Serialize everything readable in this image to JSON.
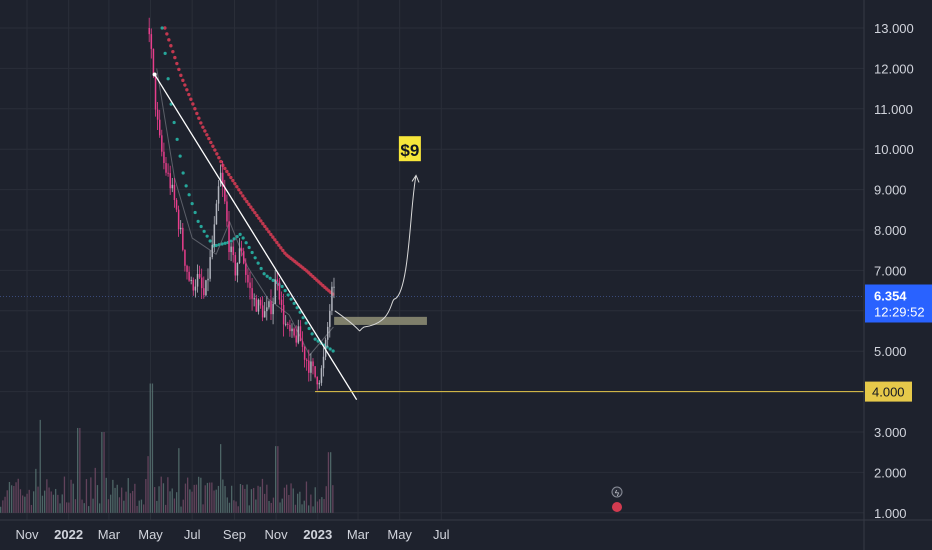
{
  "colors": {
    "background": "#1e222d",
    "grid": "#2a2e39",
    "axis_text": "#d1d4dc",
    "candle_up": "#b2b5be",
    "candle_down": "#e83e8c",
    "ma_red": "#c2384f",
    "ma_teal": "#26a69a",
    "ma_gray": "#6b6f78",
    "trendline": "#ffffff",
    "support_line": "#e6c94a",
    "zone": "#8a8a72",
    "price_tag": "#2962ff",
    "target_label_bg": "#f7e63a"
  },
  "chart_data": {
    "type": "candlestick",
    "title": "",
    "xlabel": "",
    "ylabel": "",
    "ylim": [
      1.0,
      13.0
    ],
    "x_ticks": [
      "Nov",
      "2022",
      "Mar",
      "May",
      "Jul",
      "Sep",
      "Nov",
      "2023",
      "Mar",
      "May",
      "Jul"
    ],
    "x_tick_dates": [
      "2021-11-01",
      "2022-01-01",
      "2022-03-01",
      "2022-05-01",
      "2022-07-01",
      "2022-09-01",
      "2022-11-01",
      "2023-01-01",
      "2023-03-01",
      "2023-05-01",
      "2023-07-01"
    ],
    "x_tick_bold": [
      false,
      true,
      false,
      false,
      false,
      false,
      false,
      true,
      false,
      false,
      false
    ],
    "y_ticks": [
      "13.000",
      "12.000",
      "11.000",
      "10.000",
      "9.000",
      "8.000",
      "7.000",
      "6.000",
      "5.000",
      "4.000",
      "3.000",
      "2.000",
      "1.000"
    ],
    "price_series_approx": [
      {
        "date": "2022-04-28",
        "close": 13.0
      },
      {
        "date": "2022-05-05",
        "close": 11.5
      },
      {
        "date": "2022-05-12",
        "close": 10.3
      },
      {
        "date": "2022-05-20",
        "close": 9.6
      },
      {
        "date": "2022-05-28",
        "close": 9.2
      },
      {
        "date": "2022-06-08",
        "close": 8.4
      },
      {
        "date": "2022-06-20",
        "close": 7.2
      },
      {
        "date": "2022-06-28",
        "close": 6.6
      },
      {
        "date": "2022-07-08",
        "close": 6.8
      },
      {
        "date": "2022-07-18",
        "close": 6.3
      },
      {
        "date": "2022-07-26",
        "close": 7.2
      },
      {
        "date": "2022-08-03",
        "close": 8.2
      },
      {
        "date": "2022-08-10",
        "close": 9.4
      },
      {
        "date": "2022-08-17",
        "close": 8.6
      },
      {
        "date": "2022-08-24",
        "close": 7.5
      },
      {
        "date": "2022-09-01",
        "close": 7.0
      },
      {
        "date": "2022-09-10",
        "close": 7.6
      },
      {
        "date": "2022-09-18",
        "close": 6.8
      },
      {
        "date": "2022-09-26",
        "close": 6.3
      },
      {
        "date": "2022-10-06",
        "close": 6.1
      },
      {
        "date": "2022-10-16",
        "close": 5.9
      },
      {
        "date": "2022-10-26",
        "close": 6.2
      },
      {
        "date": "2022-11-01",
        "close": 7.0
      },
      {
        "date": "2022-11-08",
        "close": 6.0
      },
      {
        "date": "2022-11-16",
        "close": 5.5
      },
      {
        "date": "2022-11-25",
        "close": 5.3
      },
      {
        "date": "2022-12-03",
        "close": 5.4
      },
      {
        "date": "2022-12-12",
        "close": 4.9
      },
      {
        "date": "2022-12-20",
        "close": 4.6
      },
      {
        "date": "2022-12-28",
        "close": 4.35
      },
      {
        "date": "2023-01-04",
        "close": 4.4
      },
      {
        "date": "2023-01-10",
        "close": 4.9
      },
      {
        "date": "2023-01-14",
        "close": 5.5
      },
      {
        "date": "2023-01-18",
        "close": 6.1
      },
      {
        "date": "2023-01-22",
        "close": 6.6
      },
      {
        "date": "2023-01-24",
        "close": 6.354
      }
    ],
    "moving_averages": [
      {
        "color_key": "ma_red",
        "points": [
          {
            "date": "2022-05-22",
            "value": 13.0
          },
          {
            "date": "2022-06-15",
            "value": 11.8
          },
          {
            "date": "2022-07-15",
            "value": 10.6
          },
          {
            "date": "2022-08-15",
            "value": 9.6
          },
          {
            "date": "2022-09-15",
            "value": 8.8
          },
          {
            "date": "2022-10-15",
            "value": 8.1
          },
          {
            "date": "2022-11-15",
            "value": 7.4
          },
          {
            "date": "2022-12-15",
            "value": 7.0
          },
          {
            "date": "2023-01-10",
            "value": 6.6
          },
          {
            "date": "2023-01-24",
            "value": 6.4
          }
        ]
      },
      {
        "color_key": "ma_teal",
        "points": [
          {
            "date": "2022-05-18",
            "value": 13.0
          },
          {
            "date": "2022-06-01",
            "value": 11.0
          },
          {
            "date": "2022-06-20",
            "value": 9.2
          },
          {
            "date": "2022-07-10",
            "value": 8.2
          },
          {
            "date": "2022-08-01",
            "value": 7.6
          },
          {
            "date": "2022-08-25",
            "value": 7.7
          },
          {
            "date": "2022-09-10",
            "value": 7.9
          },
          {
            "date": "2022-09-25",
            "value": 7.5
          },
          {
            "date": "2022-10-15",
            "value": 6.9
          },
          {
            "date": "2022-11-10",
            "value": 6.6
          },
          {
            "date": "2022-12-05",
            "value": 6.0
          },
          {
            "date": "2022-12-28",
            "value": 5.3
          },
          {
            "date": "2023-01-24",
            "value": 5.0
          }
        ]
      },
      {
        "color_key": "ma_gray",
        "points": [
          {
            "date": "2022-05-10",
            "value": 12.0
          },
          {
            "date": "2022-06-05",
            "value": 9.3
          },
          {
            "date": "2022-07-01",
            "value": 7.8
          },
          {
            "date": "2022-08-05",
            "value": 7.4
          },
          {
            "date": "2022-08-25",
            "value": 8.2
          },
          {
            "date": "2022-09-20",
            "value": 7.1
          },
          {
            "date": "2022-10-20",
            "value": 6.3
          },
          {
            "date": "2022-11-20",
            "value": 5.9
          },
          {
            "date": "2022-12-20",
            "value": 4.9
          },
          {
            "date": "2023-01-24",
            "value": 5.6
          }
        ]
      }
    ],
    "annotations": {
      "trendline": {
        "start": {
          "date": "2022-05-07",
          "value": 11.85
        },
        "end": {
          "date": "2023-02-27",
          "value": 3.8
        }
      },
      "support_level": {
        "value": 4.0,
        "from_date": "2022-12-28",
        "label": "4.000"
      },
      "zone": {
        "from_date": "2023-01-25",
        "to_date": "2023-06-10",
        "low": 5.65,
        "high": 5.85
      },
      "projection_arrow": {
        "points": [
          {
            "date": "2023-01-26",
            "value": 6.0
          },
          {
            "date": "2023-03-10",
            "value": 5.6
          },
          {
            "date": "2023-04-25",
            "value": 6.3
          },
          {
            "date": "2023-05-25",
            "value": 9.35
          }
        ]
      },
      "target_label": {
        "text": "$9",
        "date": "2023-05-16",
        "value": 10.0
      }
    },
    "current_price": {
      "value": 6.354,
      "label": "6.354",
      "countdown": "12:29:52"
    },
    "volume_approx": {
      "baseline_price_units": 1.0,
      "max_height_price_units": 3.2,
      "spikes": [
        {
          "date": "2021-11-20",
          "height": 2.3
        },
        {
          "date": "2022-01-15",
          "height": 2.1
        },
        {
          "date": "2022-02-20",
          "height": 2.0
        },
        {
          "date": "2022-05-01",
          "height": 3.2
        },
        {
          "date": "2022-05-02",
          "height": 2.8
        },
        {
          "date": "2022-06-10",
          "height": 1.6
        },
        {
          "date": "2022-08-10",
          "height": 1.7
        },
        {
          "date": "2022-11-01",
          "height": 1.65
        },
        {
          "date": "2023-01-18",
          "height": 1.5
        }
      ]
    }
  }
}
